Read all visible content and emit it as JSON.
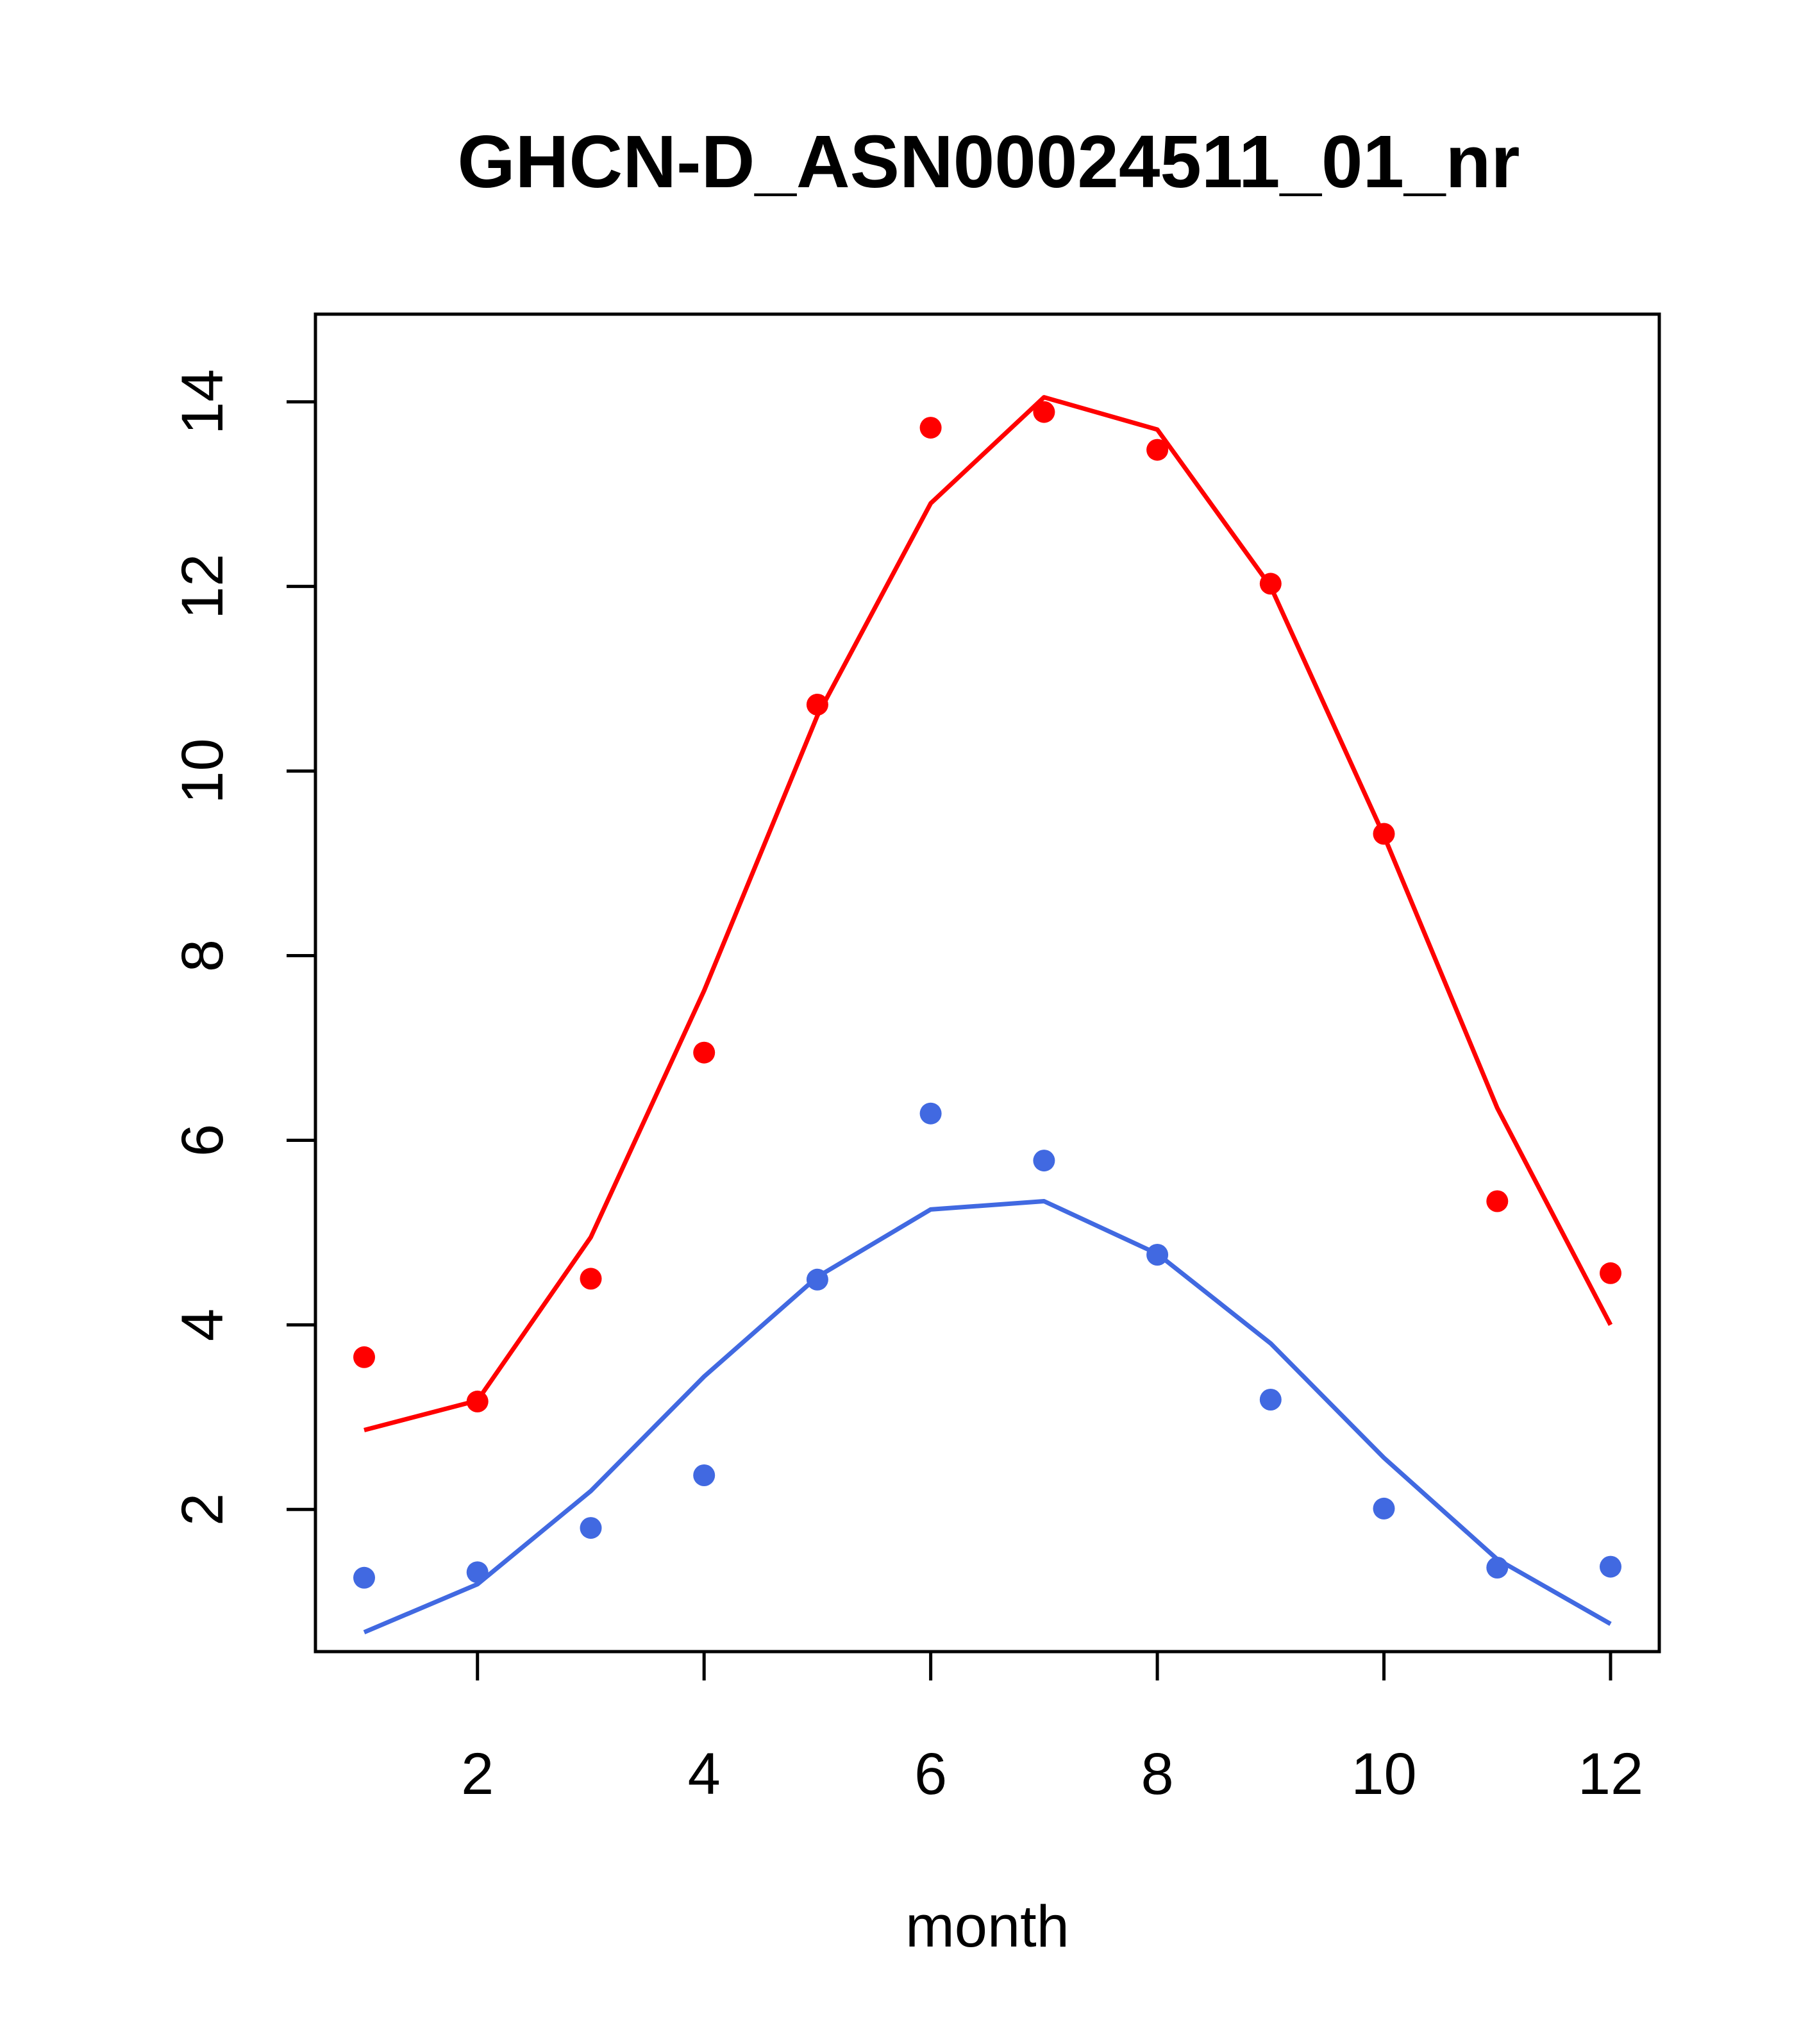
{
  "chart_data": {
    "type": "scatter",
    "title": "GHCN-D_ASN00024511_01_nr",
    "xlabel": "month",
    "ylabel": "",
    "xlim": [
      0.57,
      12.43
    ],
    "ylim": [
      0.46,
      14.95
    ],
    "xticks": [
      2,
      4,
      6,
      8,
      10,
      12
    ],
    "yticks": [
      2,
      4,
      6,
      8,
      10,
      12,
      14
    ],
    "grid": false,
    "legend": "none",
    "x": [
      1,
      2,
      3,
      4,
      5,
      6,
      7,
      8,
      9,
      10,
      11,
      12
    ],
    "series": [
      {
        "color": "#ff0000",
        "points": [
          3.65,
          3.17,
          4.5,
          6.95,
          10.72,
          13.72,
          13.89,
          13.48,
          12.03,
          9.32,
          5.34,
          4.56
        ],
        "line": [
          2.86,
          3.18,
          4.95,
          7.62,
          10.6,
          12.9,
          14.05,
          13.7,
          12.0,
          9.3,
          6.35,
          4.0
        ]
      },
      {
        "color": "#4169e1",
        "points": [
          1.26,
          1.32,
          1.8,
          2.37,
          4.49,
          6.29,
          5.78,
          4.76,
          3.19,
          2.01,
          1.37,
          1.38
        ],
        "line": [
          0.67,
          1.19,
          2.2,
          3.44,
          4.52,
          5.25,
          5.34,
          4.77,
          3.8,
          2.56,
          1.46,
          0.76
        ]
      }
    ]
  }
}
